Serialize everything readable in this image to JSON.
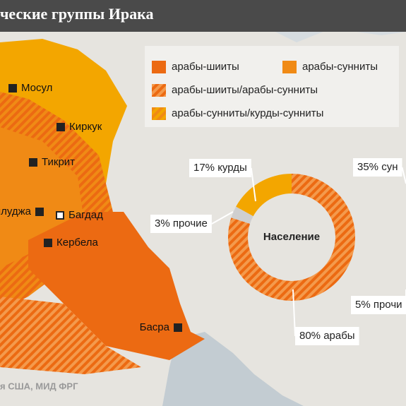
{
  "header": {
    "title": "ческие группы Ирака"
  },
  "legend": [
    {
      "label": "арабы-шииты",
      "color": "#ec6a12",
      "hatched": false
    },
    {
      "label": "арабы-сунниты",
      "color": "#f08a15",
      "hatched": false
    },
    {
      "label": "арабы-шииты/арабы-сунниты",
      "color": "#ec6a12",
      "hatched": true
    },
    {
      "label": "арабы-сунниты/курды-сунниты",
      "color": "#f3a600",
      "hatched": true
    }
  ],
  "cities": [
    "Мосул",
    "Киркук",
    "Тикрит",
    "ллуджа",
    "Багдад",
    "Кербела",
    "Басра"
  ],
  "source": "я США, МИД ФРГ",
  "chart_data": [
    {
      "type": "pie",
      "title": "Население",
      "values": [
        80,
        3,
        17
      ],
      "value_labels": [
        "80% арабы",
        "3% прочие",
        "17% курды"
      ],
      "colors": [
        "#ec6a12",
        "#cfcfcf",
        "#f3a600"
      ],
      "hatched": [
        true,
        false,
        false
      ]
    },
    {
      "type": "pie",
      "values": [
        35,
        5
      ],
      "value_labels": [
        "35% сун",
        "5% прочи"
      ],
      "colors": [
        "#f3a600",
        "#cfcfcf"
      ],
      "hatched": [
        true,
        false
      ]
    }
  ]
}
